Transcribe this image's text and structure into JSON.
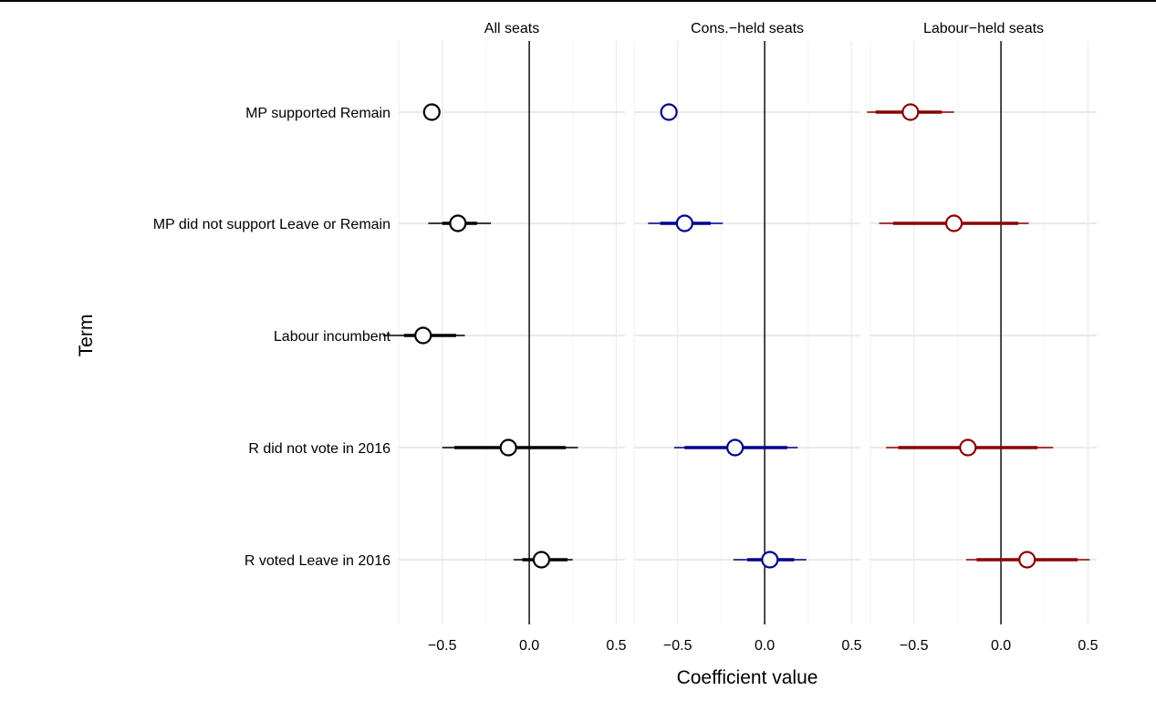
{
  "chart_data": {
    "type": "scatter",
    "subtype": "faceted coefficient plot with interval lines",
    "xlabel": "Coefficient value",
    "ylabel": "Term",
    "xlim": [
      -0.75,
      0.55
    ],
    "x_ticks": [
      -0.5,
      0.0,
      0.5
    ],
    "x_tick_labels": [
      "−0.5",
      "0.0",
      "0.5"
    ],
    "reference_line_x": 0,
    "grid": true,
    "terms": [
      "MP supported Remain",
      "MP did not support Leave or Remain",
      "Labour incumbent",
      "R did not vote in 2016",
      "R voted Leave in 2016"
    ],
    "facets": [
      {
        "title": "All seats",
        "color": "#000000",
        "estimates": [
          {
            "term": "MP supported Remain",
            "estimate": -0.56,
            "inner": [
              -0.58,
              -0.54
            ],
            "outer": [
              -0.59,
              -0.53
            ]
          },
          {
            "term": "MP did not support Leave or Remain",
            "estimate": -0.41,
            "inner": [
              -0.5,
              -0.3
            ],
            "outer": [
              -0.58,
              -0.22
            ]
          },
          {
            "term": "Labour incumbent",
            "estimate": -0.61,
            "inner": [
              -0.72,
              -0.42
            ],
            "outer": [
              -0.84,
              -0.37
            ]
          },
          {
            "term": "R did not vote in 2016",
            "estimate": -0.12,
            "inner": [
              -0.43,
              0.21
            ],
            "outer": [
              -0.5,
              0.28
            ]
          },
          {
            "term": "R voted Leave in 2016",
            "estimate": 0.07,
            "inner": [
              -0.04,
              0.22
            ],
            "outer": [
              -0.09,
              0.25
            ]
          }
        ]
      },
      {
        "title": "Cons.−held seats",
        "color": "#00008B",
        "estimates": [
          {
            "term": "MP supported Remain",
            "estimate": -0.55,
            "inner": [
              -0.56,
              -0.54
            ],
            "outer": [
              -0.57,
              -0.53
            ]
          },
          {
            "term": "MP did not support Leave or Remain",
            "estimate": -0.46,
            "inner": [
              -0.6,
              -0.31
            ],
            "outer": [
              -0.67,
              -0.24
            ]
          },
          {
            "term": "R did not vote in 2016",
            "estimate": -0.17,
            "inner": [
              -0.46,
              0.13
            ],
            "outer": [
              -0.52,
              0.19
            ]
          },
          {
            "term": "R voted Leave in 2016",
            "estimate": 0.03,
            "inner": [
              -0.1,
              0.17
            ],
            "outer": [
              -0.18,
              0.24
            ]
          }
        ]
      },
      {
        "title": "Labour−held seats",
        "color": "#8B0000",
        "estimates": [
          {
            "term": "MP supported Remain",
            "estimate": -0.52,
            "inner": [
              -0.72,
              -0.34
            ],
            "outer": [
              -0.77,
              -0.27
            ]
          },
          {
            "term": "MP did not support Leave or Remain",
            "estimate": -0.27,
            "inner": [
              -0.62,
              0.1
            ],
            "outer": [
              -0.7,
              0.16
            ]
          },
          {
            "term": "R did not vote in 2016",
            "estimate": -0.19,
            "inner": [
              -0.59,
              0.21
            ],
            "outer": [
              -0.66,
              0.3
            ]
          },
          {
            "term": "R voted Leave in 2016",
            "estimate": 0.15,
            "inner": [
              -0.14,
              0.44
            ],
            "outer": [
              -0.2,
              0.51
            ]
          }
        ]
      }
    ]
  }
}
